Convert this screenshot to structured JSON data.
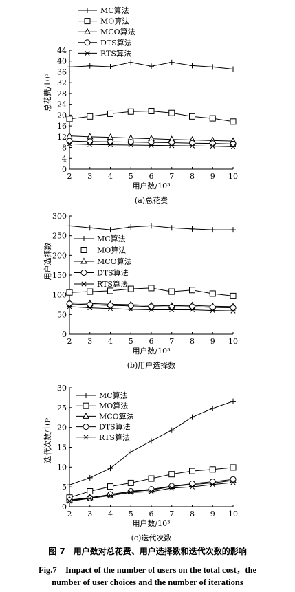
{
  "figure": {
    "caption_cn": "图 7　用户数对总花费、用户选择数和迭代次数的影响",
    "caption_en_line1": "Fig.7　Impact of the number of users on the total cost，the",
    "caption_en_line2": "number of user choices and the number of iterations"
  },
  "chart_data": [
    {
      "type": "line",
      "caption": "(a)总花费",
      "xlabel": "用户数/10³",
      "ylabel": "总花费/10⁵",
      "x": [
        2,
        3,
        4,
        5,
        6,
        7,
        8,
        9,
        10
      ],
      "xlim": [
        2,
        10
      ],
      "ylim": [
        0,
        44
      ],
      "yticks": [
        0,
        4,
        8,
        12,
        16,
        20,
        24,
        28,
        32,
        36,
        40,
        44
      ],
      "legend": "top-left",
      "series": [
        {
          "name": "MC算法",
          "marker": "plus",
          "values": [
            37.8,
            38.2,
            37.9,
            39.5,
            38.1,
            39.5,
            38.3,
            37.8,
            37.0
          ]
        },
        {
          "name": "MO算法",
          "marker": "square",
          "values": [
            18.6,
            19.5,
            20.5,
            21.3,
            21.5,
            20.8,
            19.5,
            18.8,
            17.6
          ]
        },
        {
          "name": "MCO算法",
          "marker": "triangle",
          "values": [
            12.3,
            12.0,
            11.8,
            11.5,
            11.3,
            11.0,
            10.8,
            10.6,
            10.4
          ]
        },
        {
          "name": "DTS算法",
          "marker": "circle",
          "values": [
            10.4,
            10.2,
            10.1,
            10.0,
            9.9,
            9.8,
            9.6,
            9.5,
            9.3
          ]
        },
        {
          "name": "RTS算法",
          "marker": "star",
          "values": [
            9.3,
            9.1,
            9.0,
            8.9,
            8.8,
            8.7,
            8.6,
            8.5,
            8.3
          ]
        }
      ]
    },
    {
      "type": "line",
      "caption": "(b)用户选择数",
      "xlabel": "用户数/10³",
      "ylabel": "用户选择数",
      "x": [
        2,
        3,
        4,
        5,
        6,
        7,
        8,
        9,
        10
      ],
      "xlim": [
        2,
        10
      ],
      "ylim": [
        0,
        300
      ],
      "yticks": [
        0,
        50,
        100,
        150,
        200,
        250,
        300
      ],
      "legend": "left",
      "series": [
        {
          "name": "MC算法",
          "marker": "plus",
          "values": [
            275,
            270,
            265,
            272,
            275,
            270,
            267,
            265,
            265
          ]
        },
        {
          "name": "MO算法",
          "marker": "square",
          "values": [
            106,
            108,
            110,
            115,
            117,
            108,
            112,
            103,
            97
          ]
        },
        {
          "name": "MCO算法",
          "marker": "triangle",
          "values": [
            80,
            78,
            76,
            75,
            73,
            72,
            73,
            71,
            70
          ]
        },
        {
          "name": "DTS算法",
          "marker": "circle",
          "values": [
            77,
            75,
            73,
            72,
            70,
            69,
            70,
            68,
            67
          ]
        },
        {
          "name": "RTS算法",
          "marker": "star",
          "values": [
            70,
            67,
            65,
            63,
            62,
            62,
            62,
            60,
            59
          ]
        }
      ]
    },
    {
      "type": "line",
      "caption": "(c)迭代次数",
      "xlabel": "用户数/10³",
      "ylabel": "迭代次数/10⁵",
      "x": [
        2,
        3,
        4,
        5,
        6,
        7,
        8,
        9,
        10
      ],
      "xlim": [
        2,
        10
      ],
      "ylim": [
        0,
        30
      ],
      "yticks": [
        0,
        5,
        10,
        15,
        20,
        25,
        30
      ],
      "legend": "top-right",
      "series": [
        {
          "name": "MC算法",
          "marker": "plus",
          "values": [
            5.5,
            7.3,
            9.7,
            13.8,
            16.6,
            19.3,
            22.6,
            24.8,
            26.6
          ]
        },
        {
          "name": "MO算法",
          "marker": "square",
          "values": [
            2.3,
            3.9,
            5.1,
            6.0,
            7.1,
            8.2,
            9.0,
            9.4,
            9.9
          ]
        },
        {
          "name": "MCO算法",
          "marker": "triangle",
          "values": [
            1.7,
            2.3,
            3.0,
            3.8,
            4.2,
            5.1,
            5.6,
            6.0,
            6.6
          ]
        },
        {
          "name": "DTS算法",
          "marker": "circle",
          "values": [
            1.6,
            2.2,
            3.1,
            3.9,
            4.4,
            5.2,
            5.8,
            6.3,
            6.9
          ]
        },
        {
          "name": "RTS算法",
          "marker": "star",
          "values": [
            1.4,
            2.1,
            2.8,
            3.6,
            3.8,
            4.7,
            5.0,
            5.6,
            6.1
          ]
        }
      ]
    }
  ]
}
